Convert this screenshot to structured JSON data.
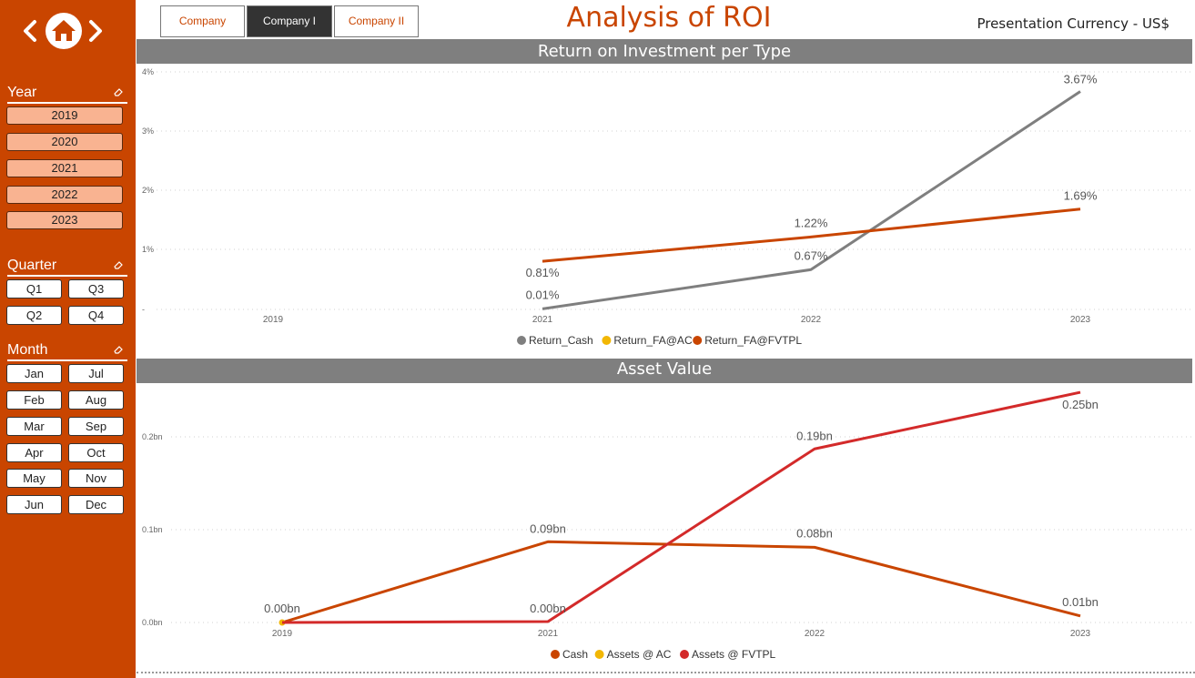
{
  "header": {
    "tabs": [
      {
        "label": "Company",
        "active": false
      },
      {
        "label": "Company I",
        "active": true
      },
      {
        "label": "Company II",
        "active": false
      }
    ],
    "title": "Analysis of ROI",
    "currency": "Presentation Currency - US$"
  },
  "sidebar": {
    "year": {
      "title": "Year",
      "items": [
        "2019",
        "2020",
        "2021",
        "2022",
        "2023"
      ]
    },
    "quarter": {
      "title": "Quarter",
      "items": [
        "Q1",
        "Q3",
        "Q2",
        "Q4"
      ]
    },
    "month": {
      "title": "Month",
      "items": [
        "Jan",
        "Jul",
        "Feb",
        "Aug",
        "Mar",
        "Sep",
        "Apr",
        "Oct",
        "May",
        "Nov",
        "Jun",
        "Dec"
      ]
    }
  },
  "colors": {
    "accent": "#C94500",
    "gray": "#7f7f7f",
    "yellow": "#F2B705",
    "red": "#D32A2A",
    "year_fill": "#F9B391"
  },
  "icons": [
    "chevron-left-icon",
    "home-icon",
    "chevron-right-icon",
    "eraser-icon"
  ],
  "chart_data": [
    {
      "type": "line",
      "title": "Return on Investment per Type",
      "categories": [
        "2019",
        "2021",
        "2022",
        "2023"
      ],
      "y_ticks": [
        "4%",
        "3%",
        "2%",
        "1%",
        "-"
      ],
      "ylim": [
        0,
        4
      ],
      "grid": true,
      "legend": "bottom-center",
      "series": [
        {
          "name": "Return_Cash",
          "color": "#7f7f7f",
          "values": [
            null,
            0.01,
            0.67,
            3.67
          ],
          "labels": [
            "",
            "0.01%",
            "0.67%",
            "3.67%"
          ]
        },
        {
          "name": "Return_FA@AC",
          "color": "#F2B705",
          "values": [
            null,
            null,
            null,
            null
          ],
          "labels": [
            "",
            "",
            "",
            ""
          ]
        },
        {
          "name": "Return_FA@FVTPL",
          "color": "#C94500",
          "values": [
            null,
            0.81,
            1.22,
            1.69
          ],
          "labels": [
            "",
            "0.81%",
            "1.22%",
            "1.69%"
          ]
        }
      ]
    },
    {
      "type": "line",
      "title": "Asset Value",
      "categories": [
        "2019",
        "2021",
        "2022",
        "2023"
      ],
      "y_ticks": [
        "0.2bn",
        "0.1bn",
        "0.0bn"
      ],
      "ylim": [
        0,
        0.2
      ],
      "grid": true,
      "legend": "bottom-center",
      "series": [
        {
          "name": "Cash",
          "color": "#C94500",
          "values": [
            0.0,
            0.087,
            0.081,
            0.007
          ],
          "labels": [
            "0.00bn",
            "0.09bn",
            "0.08bn",
            "0.01bn"
          ]
        },
        {
          "name": "Assets @ AC",
          "color": "#F2B705",
          "values": [
            0.0,
            null,
            null,
            null
          ],
          "labels": [
            "",
            "",
            "",
            ""
          ]
        },
        {
          "name": "Assets @ FVTPL",
          "color": "#D32A2A",
          "values": [
            0.0,
            0.001,
            0.187,
            0.248
          ],
          "labels": [
            "",
            "0.00bn",
            "0.19bn",
            "0.25bn"
          ]
        }
      ]
    }
  ]
}
